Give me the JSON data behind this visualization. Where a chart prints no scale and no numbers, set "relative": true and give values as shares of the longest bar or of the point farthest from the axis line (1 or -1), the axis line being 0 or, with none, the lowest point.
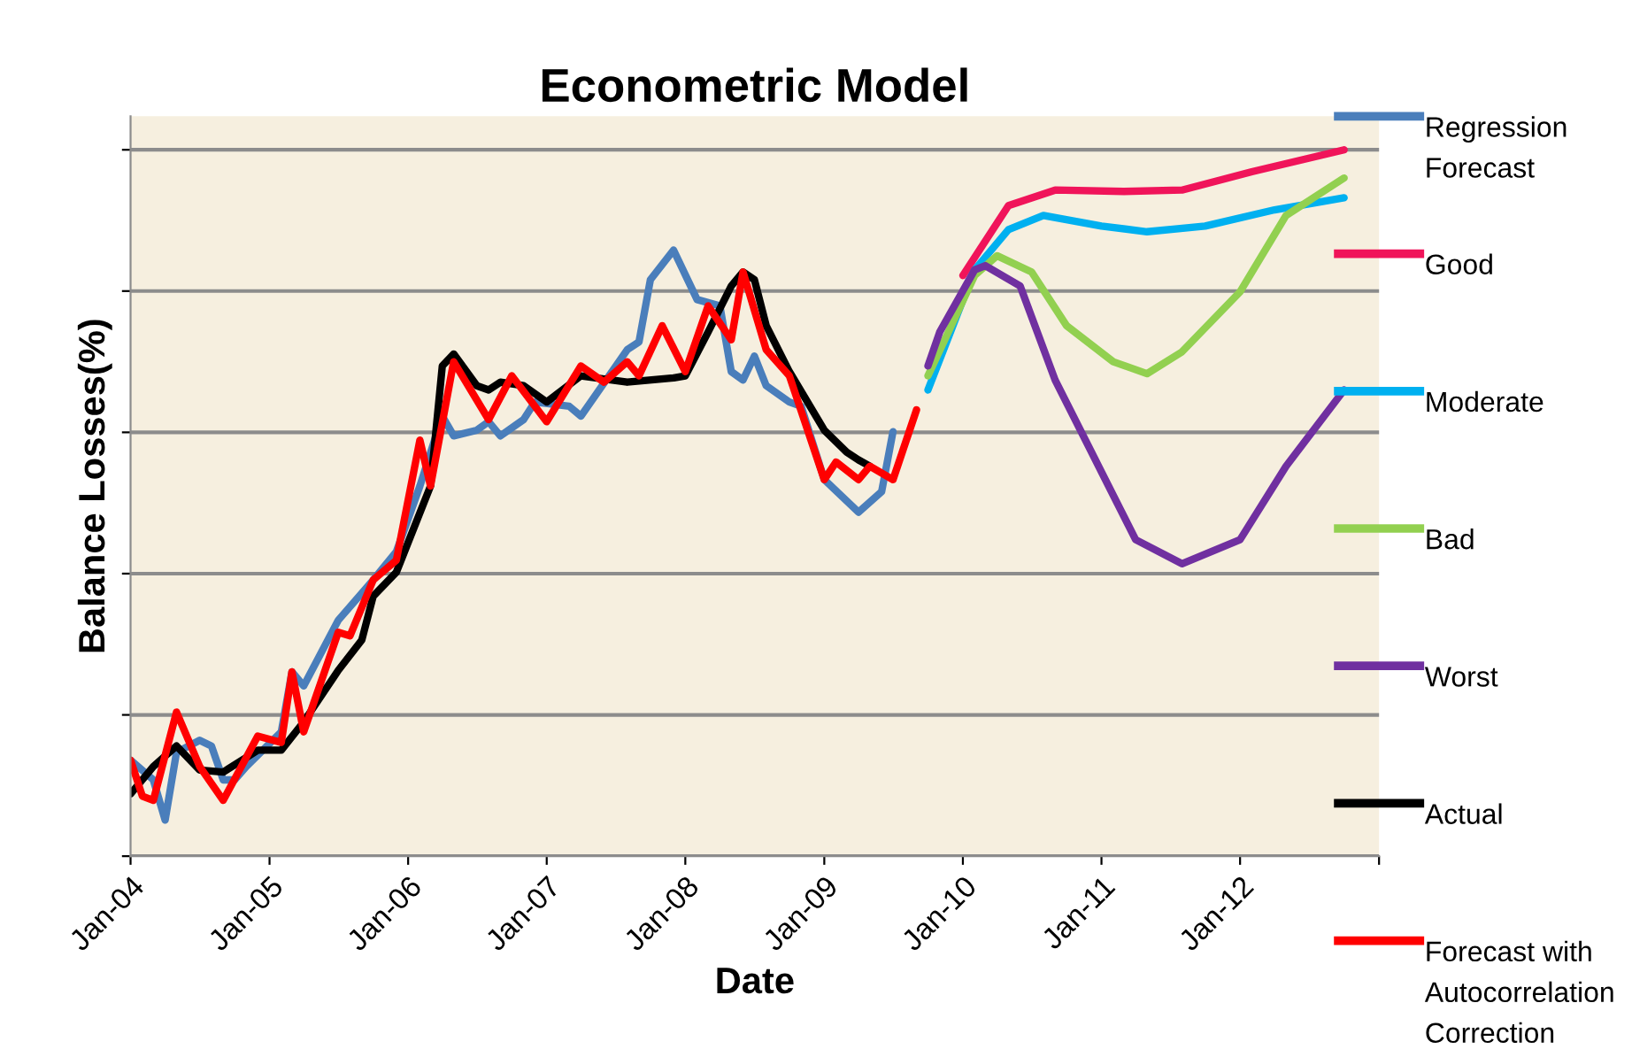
{
  "chart_data": {
    "type": "line",
    "title": "Econometric Model",
    "xlabel": "Date",
    "ylabel": "Balance Losses(%)",
    "relative": true,
    "grid": "y",
    "legend": "right",
    "tick_labels": "x",
    "line_style": "solid",
    "marker": "none",
    "xlim": [
      "2004-01",
      "2013-01"
    ],
    "xticks": [
      {
        "value": "2004-01",
        "label": "Jan-04"
      },
      {
        "value": "2005-01",
        "label": "Jan-05"
      },
      {
        "value": "2006-01",
        "label": "Jan-06"
      },
      {
        "value": "2007-01",
        "label": "Jan-07"
      },
      {
        "value": "2008-01",
        "label": "Jan-08"
      },
      {
        "value": "2009-01",
        "label": "Jan-09"
      },
      {
        "value": "2010-01",
        "label": "Jan-10"
      },
      {
        "value": "2011-01",
        "label": "Jan-11"
      },
      {
        "value": "2012-01",
        "label": "Jan-12"
      },
      {
        "value": "2013-01",
        "label": null
      }
    ],
    "series": [
      {
        "name": "Regression Forecast",
        "color": "#4a7ebb",
        "x": [
          "2004-01",
          "2004-03",
          "2004-04",
          "2004-05",
          "2004-07",
          "2004-08",
          "2004-09",
          "2004-10",
          "2004-11",
          "2005-02",
          "2005-03",
          "2005-04",
          "2005-07",
          "2005-10",
          "2005-12",
          "2006-02",
          "2006-04",
          "2006-05",
          "2006-07",
          "2006-08",
          "2006-09",
          "2006-11",
          "2006-12",
          "2007-03",
          "2007-04",
          "2007-08",
          "2007-09",
          "2007-10",
          "2007-12",
          "2008-02",
          "2008-04",
          "2008-05",
          "2008-06",
          "2008-07",
          "2008-08",
          "2008-10",
          "2008-11",
          "2009-01",
          "2009-04",
          "2009-06",
          "2009-07"
        ],
        "values": [
          0.136,
          0.108,
          0.051,
          0.147,
          0.164,
          0.156,
          0.108,
          0.108,
          0.127,
          0.176,
          0.261,
          0.241,
          0.334,
          0.391,
          0.431,
          0.524,
          0.623,
          0.595,
          0.603,
          0.615,
          0.595,
          0.618,
          0.643,
          0.637,
          0.623,
          0.717,
          0.728,
          0.816,
          0.858,
          0.788,
          0.779,
          0.686,
          0.674,
          0.708,
          0.666,
          0.643,
          0.637,
          0.533,
          0.487,
          0.516,
          0.601
        ]
      },
      {
        "name": "Good",
        "color": "#f0145a",
        "x": [
          "2010-01",
          "2010-05",
          "2010-09",
          "2011-03",
          "2011-08",
          "2012-02",
          "2012-10"
        ],
        "values": [
          0.822,
          0.921,
          0.943,
          0.941,
          0.943,
          0.969,
          1.0
        ]
      },
      {
        "name": "Moderate",
        "color": "#00b0f0",
        "x": [
          "2009-10",
          "2010-02",
          "2010-05",
          "2010-08",
          "2011-01",
          "2011-05",
          "2011-10",
          "2012-04",
          "2012-10"
        ],
        "values": [
          0.66,
          0.83,
          0.887,
          0.907,
          0.892,
          0.884,
          0.892,
          0.915,
          0.932
        ]
      },
      {
        "name": "Bad",
        "color": "#92d050",
        "x": [
          "2009-10",
          "2010-02",
          "2010-04",
          "2010-07",
          "2010-10",
          "2011-02",
          "2011-05",
          "2011-08",
          "2012-01",
          "2012-05",
          "2012-10"
        ],
        "values": [
          0.68,
          0.822,
          0.85,
          0.827,
          0.751,
          0.7,
          0.683,
          0.714,
          0.799,
          0.907,
          0.96
        ]
      },
      {
        "name": "Worst",
        "color": "#7030a0",
        "x": [
          "2009-10",
          "2009-11",
          "2010-02",
          "2010-03",
          "2010-06",
          "2010-09",
          "2011-01",
          "2011-04",
          "2011-08",
          "2012-01",
          "2012-05",
          "2012-10"
        ],
        "values": [
          0.694,
          0.742,
          0.83,
          0.836,
          0.807,
          0.674,
          0.544,
          0.448,
          0.414,
          0.448,
          0.552,
          0.66
        ]
      },
      {
        "name": "Actual",
        "color": "#000000",
        "x": [
          "2004-01",
          "2004-03",
          "2004-05",
          "2004-07",
          "2004-09",
          "2004-12",
          "2005-02",
          "2005-04",
          "2005-07",
          "2005-09",
          "2005-10",
          "2005-12",
          "2006-03",
          "2006-04",
          "2006-05",
          "2006-07",
          "2006-08",
          "2006-09",
          "2006-11",
          "2007-01",
          "2007-04",
          "2007-08",
          "2007-12",
          "2008-01",
          "2008-03",
          "2008-05",
          "2008-06",
          "2008-07",
          "2008-08",
          "2008-10",
          "2009-01",
          "2009-03",
          "2009-04",
          "2009-05"
        ],
        "values": [
          0.088,
          0.127,
          0.156,
          0.122,
          0.119,
          0.15,
          0.15,
          0.19,
          0.263,
          0.306,
          0.368,
          0.402,
          0.524,
          0.694,
          0.711,
          0.666,
          0.66,
          0.671,
          0.666,
          0.643,
          0.68,
          0.671,
          0.677,
          0.68,
          0.742,
          0.807,
          0.827,
          0.816,
          0.751,
          0.686,
          0.603,
          0.572,
          0.561,
          0.552
        ]
      },
      {
        "name": "Forecast with Autocorrelation Correction",
        "color": "#ff0000",
        "x": [
          "2004-01",
          "2004-02",
          "2004-03",
          "2004-05",
          "2004-07",
          "2004-09",
          "2004-12",
          "2005-02",
          "2005-03",
          "2005-04",
          "2005-07",
          "2005-08",
          "2005-10",
          "2005-12",
          "2006-02",
          "2006-03",
          "2006-05",
          "2006-08",
          "2006-10",
          "2007-01",
          "2007-04",
          "2007-06",
          "2007-08",
          "2007-09",
          "2007-11",
          "2008-01",
          "2008-03",
          "2008-05",
          "2008-06",
          "2008-08",
          "2008-10",
          "2009-01",
          "2009-02",
          "2009-04",
          "2009-05",
          "2009-07",
          "2009-09"
        ],
        "values": [
          0.136,
          0.085,
          0.079,
          0.204,
          0.127,
          0.079,
          0.17,
          0.161,
          0.261,
          0.176,
          0.317,
          0.312,
          0.391,
          0.419,
          0.589,
          0.524,
          0.7,
          0.618,
          0.68,
          0.615,
          0.694,
          0.671,
          0.7,
          0.68,
          0.751,
          0.686,
          0.779,
          0.731,
          0.827,
          0.717,
          0.68,
          0.533,
          0.558,
          0.533,
          0.552,
          0.533,
          0.632
        ]
      }
    ]
  }
}
